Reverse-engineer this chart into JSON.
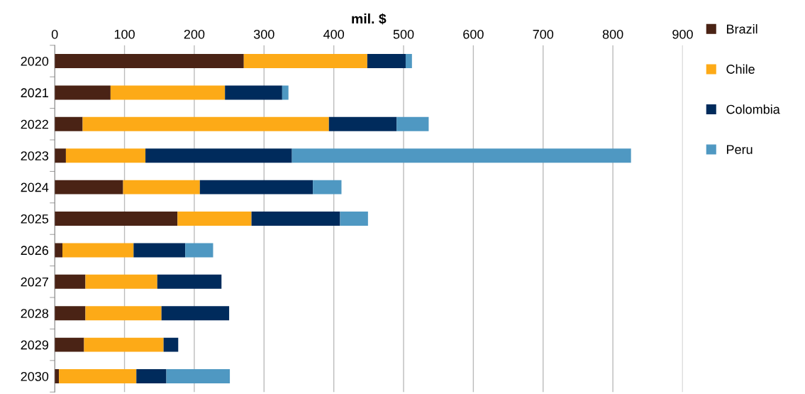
{
  "chart_data": {
    "type": "bar",
    "orientation": "horizontal",
    "stacked": true,
    "xlabel": "mil. $",
    "categories": [
      "2020",
      "2021",
      "2022",
      "2023",
      "2024",
      "2025",
      "2026",
      "2027",
      "2028",
      "2029",
      "2030"
    ],
    "series": [
      {
        "name": "Brazil",
        "color": "#4a2315",
        "values": [
          271,
          80,
          40,
          16,
          98,
          176,
          11,
          44,
          44,
          42,
          6
        ]
      },
      {
        "name": "Chile",
        "color": "#fdaa17",
        "values": [
          177,
          164,
          353,
          114,
          110,
          106,
          102,
          103,
          109,
          114,
          111
        ]
      },
      {
        "name": "Colombia",
        "color": "#002b5c",
        "values": [
          55,
          82,
          97,
          210,
          162,
          127,
          74,
          92,
          97,
          21,
          43
        ]
      },
      {
        "name": "Peru",
        "color": "#4f98c2",
        "values": [
          9,
          9,
          46,
          486,
          41,
          40,
          40,
          0,
          0,
          0,
          91
        ]
      }
    ],
    "xlim": [
      0,
      900
    ],
    "xticks": [
      0,
      100,
      200,
      300,
      400,
      500,
      600,
      700,
      800,
      900
    ],
    "grid": "x",
    "legend": "right"
  }
}
